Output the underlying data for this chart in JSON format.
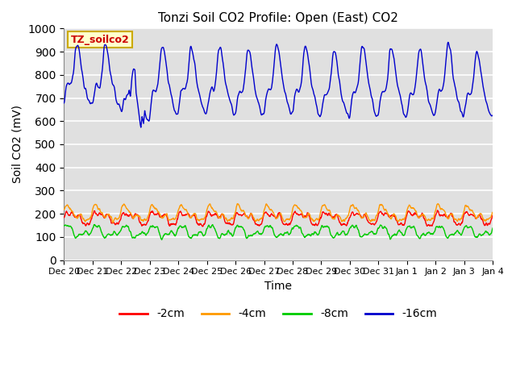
{
  "title": "Tonzi Soil CO2 Profile: Open (East) CO2",
  "xlabel": "Time",
  "ylabel": "Soil CO2 (mV)",
  "ylim": [
    0,
    1000
  ],
  "yticks": [
    0,
    100,
    200,
    300,
    400,
    500,
    600,
    700,
    800,
    900,
    1000
  ],
  "label_box_text": "TZ_soilco2",
  "label_box_color": "#ffffcc",
  "label_box_text_color": "#cc0000",
  "bg_color": "#e0e0e0",
  "series_colors": {
    "-2cm": "#ff0000",
    "-4cm": "#ff9900",
    "-8cm": "#00cc00",
    "-16cm": "#0000cc"
  },
  "xtick_labels": [
    "Dec 20",
    "Dec 21",
    "Dec 22",
    "Dec 23",
    "Dec 24",
    "Dec 25",
    "Dec 26",
    "Dec 27",
    "Dec 28",
    "Dec 29",
    "Dec 30",
    "Dec 31",
    "Jan 1",
    "Jan 2",
    "Jan 3",
    "Jan 4"
  ],
  "num_days": 15,
  "points_per_day": 96
}
